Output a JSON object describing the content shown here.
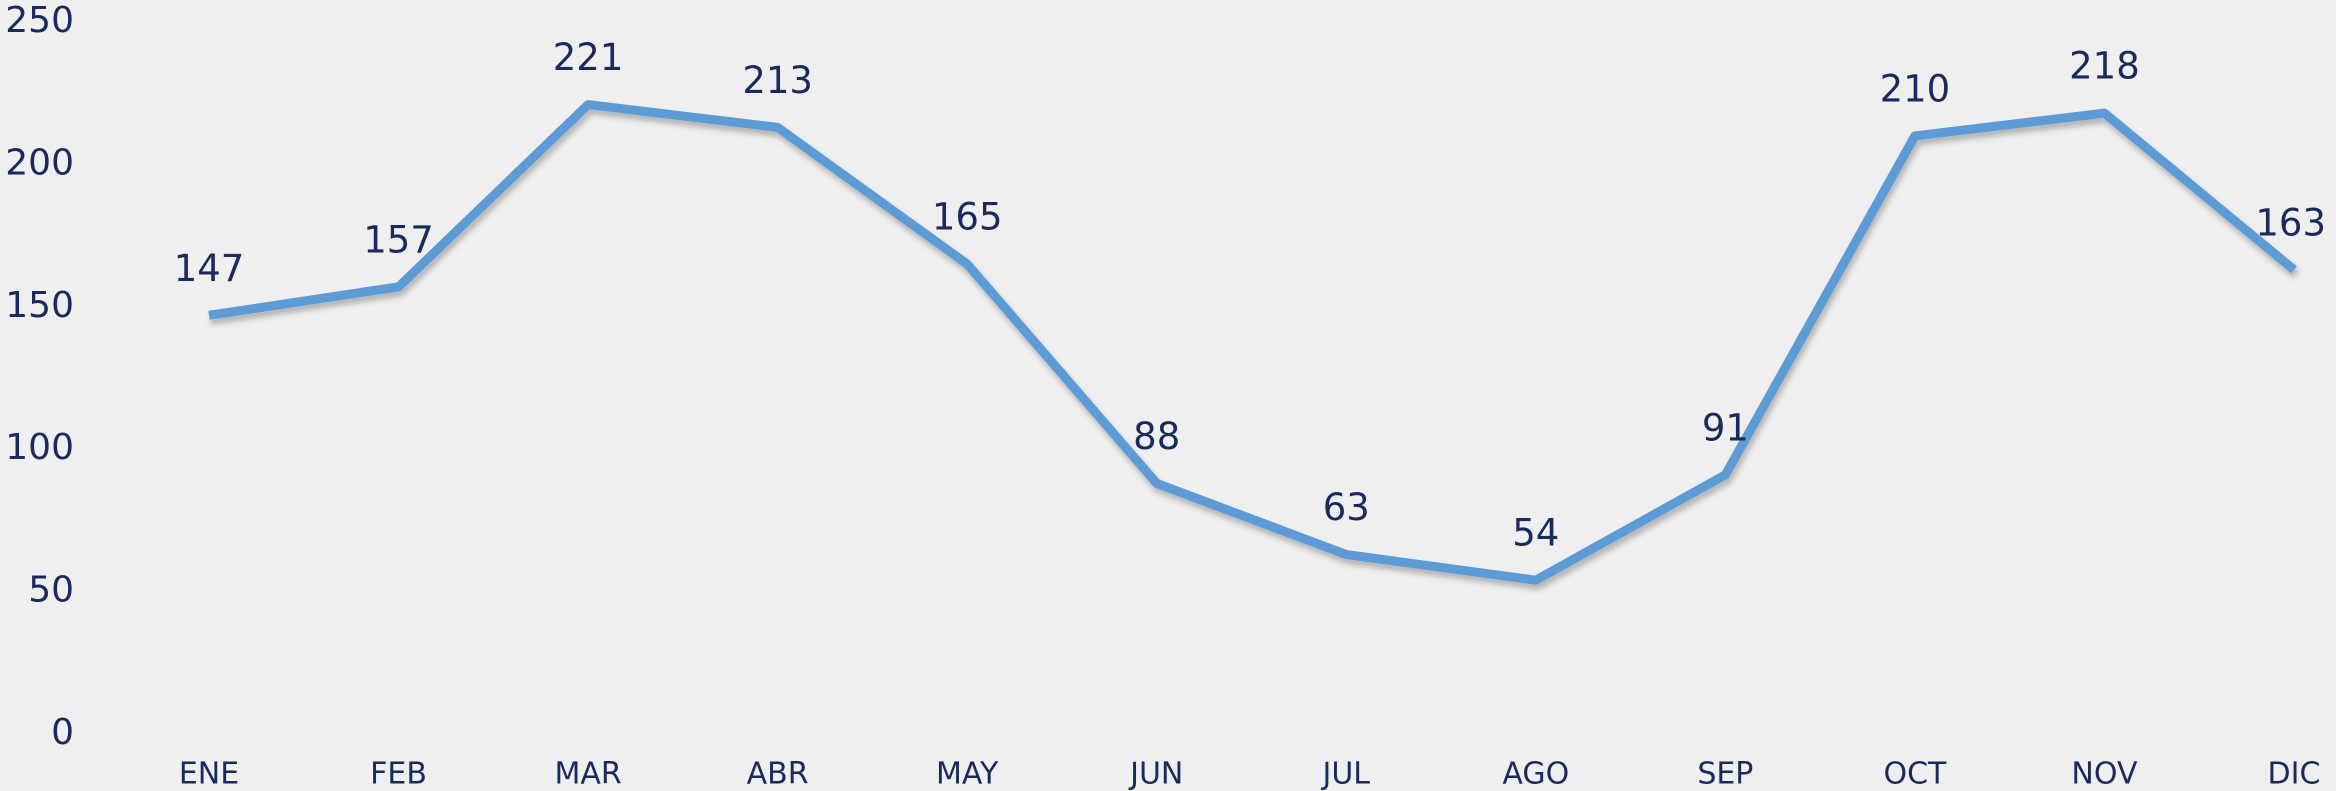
{
  "chart_data": {
    "type": "line",
    "categories": [
      "ENE",
      "FEB",
      "MAR",
      "ABR",
      "MAY",
      "JUN",
      "JUL",
      "AGO",
      "SEP",
      "OCT",
      "NOV",
      "DIC"
    ],
    "values": [
      147,
      157,
      221,
      213,
      165,
      88,
      63,
      54,
      91,
      210,
      218,
      163
    ],
    "color": "#5b9bd5",
    "ylim": [
      0,
      250
    ],
    "yticks": [
      0,
      50,
      100,
      150,
      200,
      250
    ],
    "grid": false
  }
}
